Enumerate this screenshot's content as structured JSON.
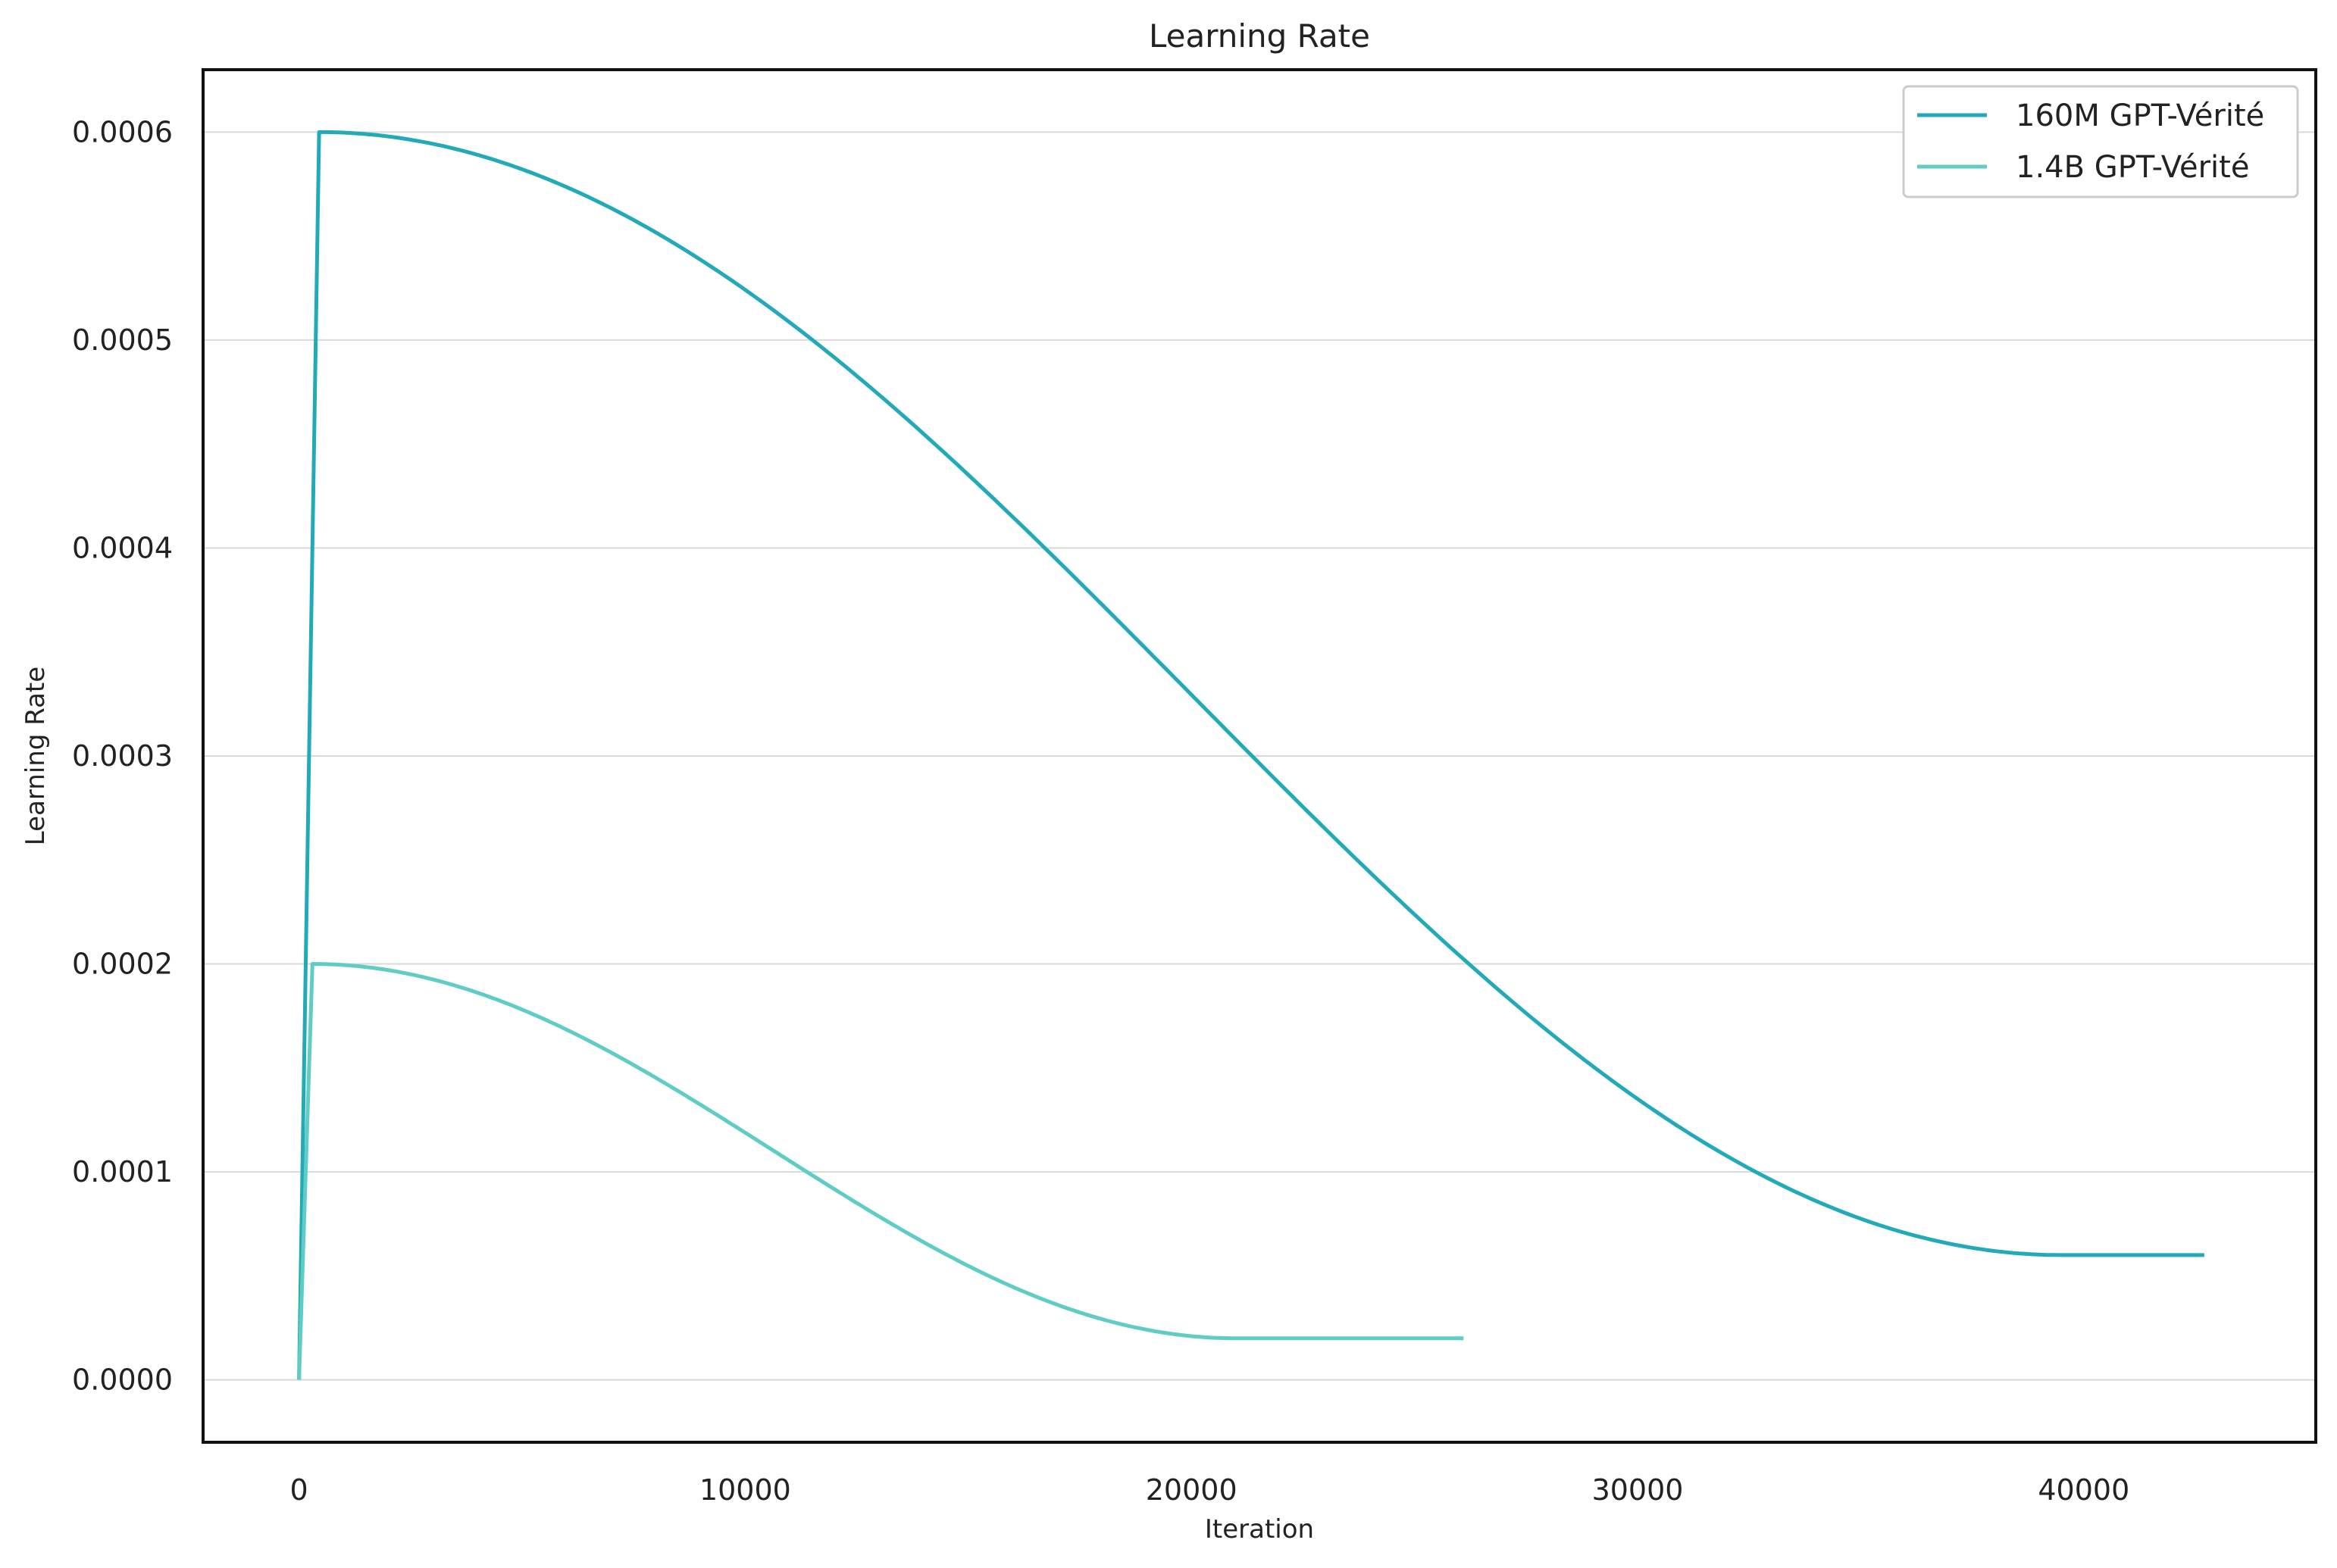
{
  "chart_data": {
    "type": "line",
    "title": "Learning Rate",
    "xlabel": "Iteration",
    "ylabel": "Learning Rate",
    "xlim": [
      -2150,
      45200
    ],
    "ylim": [
      -3e-05,
      0.00063
    ],
    "xticks": [
      0,
      10000,
      20000,
      30000,
      40000
    ],
    "xtick_labels": [
      "0",
      "10000",
      "20000",
      "30000",
      "40000"
    ],
    "yticks": [
      0,
      0.0001,
      0.0002,
      0.0003,
      0.0004,
      0.0005,
      0.0006
    ],
    "ytick_labels": [
      "0.0000",
      "0.0001",
      "0.0002",
      "0.0003",
      "0.0004",
      "0.0005",
      "0.0006"
    ],
    "grid": "horizontal",
    "legend_position": "top-right",
    "series": [
      {
        "name": "160M GPT-Vérité",
        "color": "#22aab9",
        "schedule": {
          "warmup_end": 450,
          "decay_end": 39500,
          "end": 42700,
          "max_lr": 0.0006,
          "min_lr": 6e-05
        }
      },
      {
        "name": "1.4B GPT-Vérité",
        "color": "#5fcdc5",
        "schedule": {
          "warmup_end": 300,
          "decay_end": 21000,
          "end": 26100,
          "max_lr": 0.0002,
          "min_lr": 2e-05
        }
      }
    ]
  }
}
